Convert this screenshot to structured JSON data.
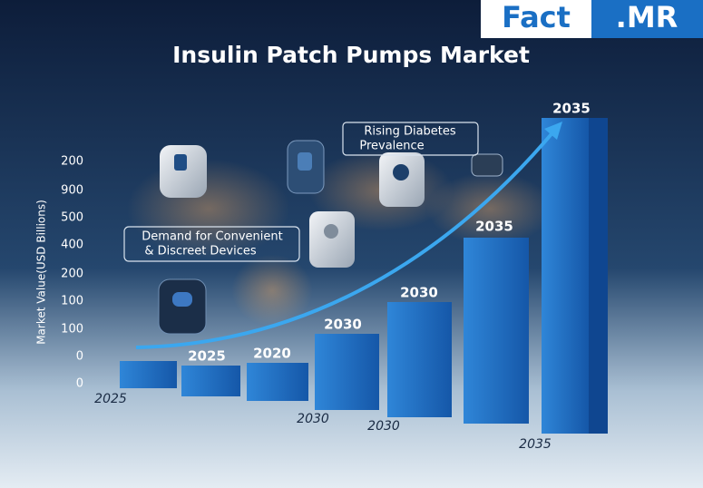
{
  "brand": {
    "left": "Fact",
    "right": ".MR"
  },
  "title": "Insulin Patch Pumps Market",
  "y_axis_label": "Market Value(USD Billions)",
  "y_labels": [
    "200",
    "900",
    "500",
    "400",
    "200",
    "100",
    "100",
    "0",
    "0"
  ],
  "callouts": [
    {
      "lines": [
        "Rising Diabetes",
        "Prevalence"
      ]
    },
    {
      "lines": [
        "Demand for Convenient",
        "& Discreet Devices"
      ]
    }
  ],
  "bar_labels": [
    "2025",
    "2020",
    "2030",
    "2030",
    "2035",
    "2035"
  ],
  "x_labels": [
    "2025",
    "2030",
    "2030",
    "2035"
  ]
}
